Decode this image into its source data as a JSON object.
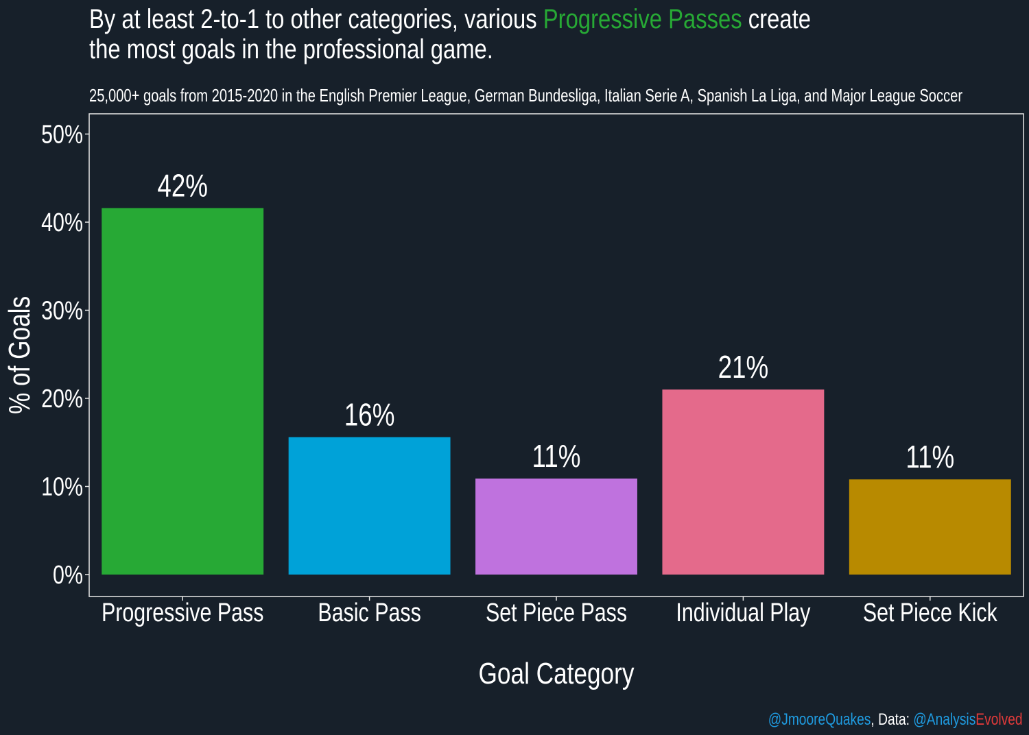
{
  "title": {
    "part1": "By at least 2-to-1 to other categories, various ",
    "highlight": "Progressive Passes",
    "part2": " create",
    "line2": "the most goals in the professional game.",
    "highlight_color": "#27a935"
  },
  "subtitle": "25,000+ goals from 2015-2020 in the English Premier League, German Bundesliga, Italian Serie A, Spanish La Liga, and Major League Soccer",
  "credit": {
    "author": "@JmooreQuakes",
    "sep": ", Data: ",
    "source_a": "@Analysis",
    "source_b": "Evolved"
  },
  "chart_data": {
    "type": "bar",
    "categories": [
      "Progressive Pass",
      "Basic Pass",
      "Set Piece Pass",
      "Individual Play",
      "Set Piece Kick"
    ],
    "values": [
      41.6,
      15.6,
      10.9,
      21.0,
      10.8
    ],
    "data_labels": [
      "42%",
      "16%",
      "11%",
      "21%",
      "11%"
    ],
    "colors": [
      "#27a935",
      "#00a2d8",
      "#bf72de",
      "#e46a8b",
      "#b88a00"
    ],
    "xlabel": "Goal Category",
    "ylabel": "% of Goals",
    "ylim": [
      0,
      52
    ],
    "yticks": [
      0,
      10,
      20,
      30,
      40,
      50
    ],
    "ytick_labels": [
      "0%",
      "10%",
      "20%",
      "30%",
      "40%",
      "50%"
    ],
    "grid": false,
    "legend": "none"
  }
}
